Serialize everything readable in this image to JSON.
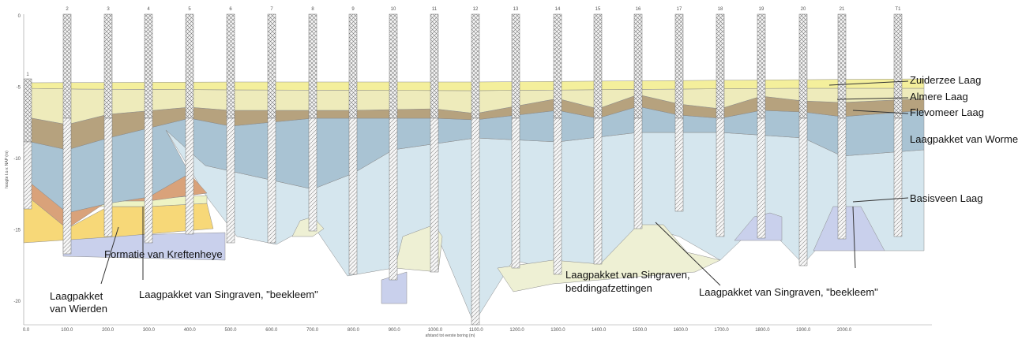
{
  "boreholes": [
    "1",
    "2",
    "3",
    "4",
    "5",
    "6",
    "7",
    "8",
    "9",
    "10",
    "11",
    "12",
    "13",
    "14",
    "15",
    "16",
    "17",
    "18",
    "19",
    "20",
    "21",
    "T1"
  ],
  "y_axis": {
    "label": "hoogte t.o.v. NAP (m)",
    "ticks": [
      "0",
      "-5",
      "-10",
      "-15",
      "-20"
    ]
  },
  "x_axis": {
    "label": "afstand tot eerste boring (m)",
    "ticks": [
      "0.0",
      "100.0",
      "200.0",
      "300.0",
      "400.0",
      "500.0",
      "600.0",
      "700.0",
      "800.0",
      "900.0",
      "1000.0",
      "1100.0",
      "1200.0",
      "1300.0",
      "1400.0",
      "1500.0",
      "1600.0",
      "1700.0",
      "1800.0",
      "1900.0",
      "2000.0"
    ]
  },
  "layers": {
    "zuiderzee": "Zuiderzee Laag",
    "almere": "Almere Laag",
    "flevomeer": "Flevomeer Laag",
    "wormer": "Laagpakket van Wormer",
    "basisveen": "Basisveen Laag",
    "kreftenheye": "Formatie van Kreftenheye",
    "wierden": [
      "Laagpakket",
      "van Wierden"
    ],
    "beekleem_left": "Laagpakket van Singraven, \"beekleem\"",
    "bedding": [
      "Laagpakket van Singraven,",
      "beddingafzettingen"
    ],
    "beekleem_right": "Laagpakket van Singraven, \"beekleem\""
  }
}
